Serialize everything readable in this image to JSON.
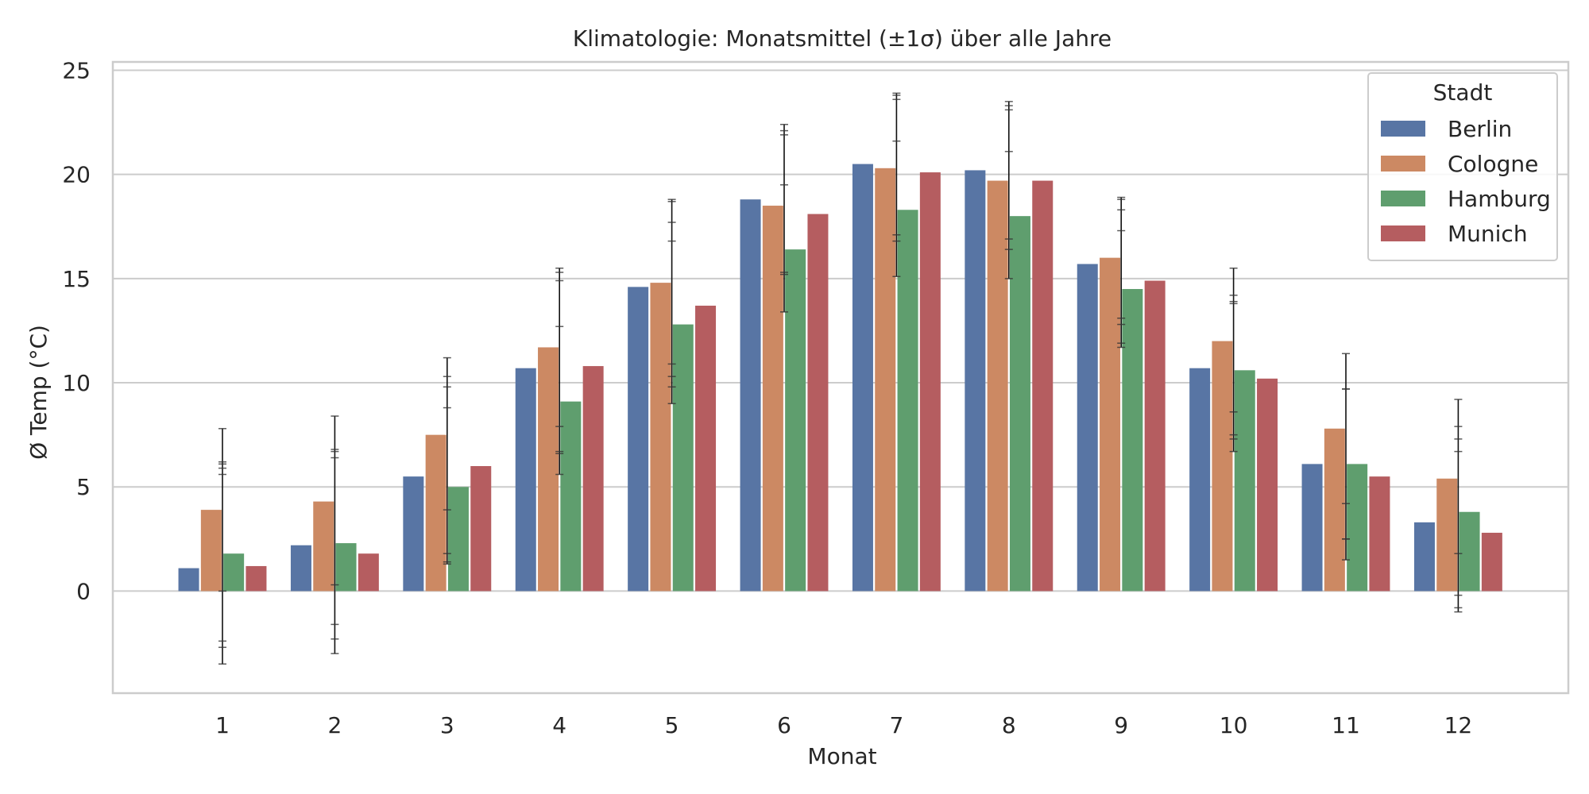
{
  "chart_data": {
    "type": "bar",
    "title": "Klimatologie: Monatsmittel (±1σ) über alle Jahre",
    "xlabel": "Monat",
    "ylabel": "Ø Temp (°C)",
    "categories": [
      "1",
      "2",
      "3",
      "4",
      "5",
      "6",
      "7",
      "8",
      "9",
      "10",
      "11",
      "12"
    ],
    "ylim": [
      -4.9,
      25.4
    ],
    "yticks": [
      0,
      5,
      10,
      15,
      20,
      25
    ],
    "grid": "horizontal",
    "legend": {
      "title": "Stadt",
      "position": "top-right"
    },
    "series": [
      {
        "name": "Berlin",
        "color": "#5875a4",
        "values": [
          1.1,
          2.2,
          5.5,
          10.7,
          14.6,
          18.8,
          20.5,
          20.2,
          15.7,
          10.7,
          6.1,
          3.3
        ]
      },
      {
        "name": "Cologne",
        "color": "#cc8963",
        "values": [
          3.9,
          4.3,
          7.5,
          11.7,
          14.8,
          18.5,
          20.3,
          19.7,
          16.0,
          12.0,
          7.8,
          5.4
        ]
      },
      {
        "name": "Hamburg",
        "color": "#5f9e6e",
        "values": [
          1.8,
          2.3,
          5.0,
          9.1,
          12.8,
          16.4,
          18.3,
          18.0,
          14.5,
          10.6,
          6.1,
          3.8
        ]
      },
      {
        "name": "Munich",
        "color": "#b55d60",
        "values": [
          1.2,
          1.8,
          6.0,
          10.8,
          13.7,
          18.1,
          20.1,
          19.7,
          14.9,
          10.2,
          5.5,
          2.8
        ]
      }
    ],
    "error_bars": {
      "label": "±1σ",
      "segments": [
        {
          "month": "1",
          "low": -3.5,
          "high": 7.8
        },
        {
          "month": "2",
          "low": -3.0,
          "high": 8.4
        },
        {
          "month": "3",
          "low": 1.3,
          "high": 11.2
        },
        {
          "month": "4",
          "low": 5.6,
          "high": 15.5
        },
        {
          "month": "5",
          "low": 9.0,
          "high": 18.8
        },
        {
          "month": "6",
          "low": 13.4,
          "high": 22.4
        },
        {
          "month": "7",
          "low": 15.1,
          "high": 23.9
        },
        {
          "month": "8",
          "low": 15.0,
          "high": 23.5
        },
        {
          "month": "9",
          "low": 11.7,
          "high": 18.9
        },
        {
          "month": "10",
          "low": 6.7,
          "high": 15.5
        },
        {
          "month": "11",
          "low": 1.5,
          "high": 11.4
        },
        {
          "month": "12",
          "low": -1.0,
          "high": 9.2
        }
      ],
      "caps": [
        [
          -3.5,
          -2.7,
          -2.4,
          0.0,
          5.6,
          5.9,
          6.1,
          6.2,
          7.8
        ],
        [
          -3.0,
          -2.3,
          -1.6,
          0.3,
          6.4,
          6.7,
          6.8,
          8.4
        ],
        [
          1.3,
          1.4,
          1.8,
          3.9,
          8.8,
          9.8,
          10.3,
          11.2
        ],
        [
          5.6,
          6.6,
          6.7,
          7.9,
          12.7,
          14.9,
          15.3,
          15.5
        ],
        [
          9.0,
          9.8,
          10.3,
          10.9,
          16.8,
          17.7,
          18.7,
          18.8
        ],
        [
          13.4,
          15.2,
          15.3,
          19.5,
          21.9,
          22.1,
          22.4
        ],
        [
          15.1,
          16.8,
          17.1,
          21.6,
          23.6,
          23.8,
          23.9
        ],
        [
          15.0,
          16.4,
          16.9,
          21.1,
          23.1,
          23.3,
          23.5
        ],
        [
          11.7,
          11.9,
          12.8,
          13.1,
          17.3,
          18.3,
          18.8,
          18.9
        ],
        [
          6.7,
          7.3,
          7.5,
          8.6,
          13.8,
          13.9,
          14.2,
          15.5
        ],
        [
          1.5,
          2.5,
          2.5,
          4.2,
          9.7,
          9.7,
          11.4
        ],
        [
          -1.0,
          -0.8,
          -0.2,
          1.8,
          6.7,
          7.3,
          7.9,
          9.2
        ]
      ]
    }
  }
}
